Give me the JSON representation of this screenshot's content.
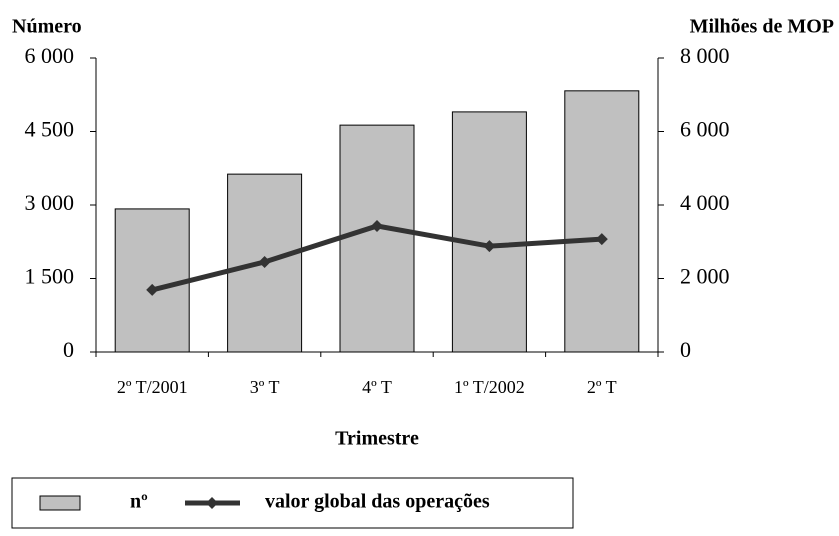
{
  "chart_data": {
    "type": "bar-line",
    "y_label": "Número",
    "y2_label": "Milhões de MOP",
    "x_label": "Trimestre",
    "categories": [
      "2º T/2001",
      "3º T",
      "4º T",
      "1º T/2002",
      "2º T"
    ],
    "series": [
      {
        "name": "nº",
        "type": "bar",
        "color": "#c0c0c0",
        "values": [
          2920,
          3630,
          4630,
          4900,
          5330
        ]
      },
      {
        "name": "valor global das operações",
        "type": "line",
        "axis": "y2",
        "color": "#333333",
        "values": [
          1690,
          2450,
          3430,
          2880,
          3070
        ]
      }
    ],
    "ylim": [
      0,
      6000
    ],
    "yticks": [
      0,
      {
        "value": 1500,
        "label": "1 500"
      },
      {
        "value": 3000,
        "label": "3 000"
      },
      {
        "value": 4500,
        "label": "4 500"
      },
      {
        "value": 6000,
        "label": "6 000"
      }
    ],
    "y2lim": [
      0,
      8000
    ],
    "y2ticks": [
      0,
      {
        "value": 2000,
        "label": "2 000"
      },
      {
        "value": 4000,
        "label": "4 000"
      },
      {
        "value": 6000,
        "label": "6 000"
      },
      {
        "value": 8000,
        "label": "8 000"
      }
    ],
    "legend": "bottom",
    "grid": false
  }
}
